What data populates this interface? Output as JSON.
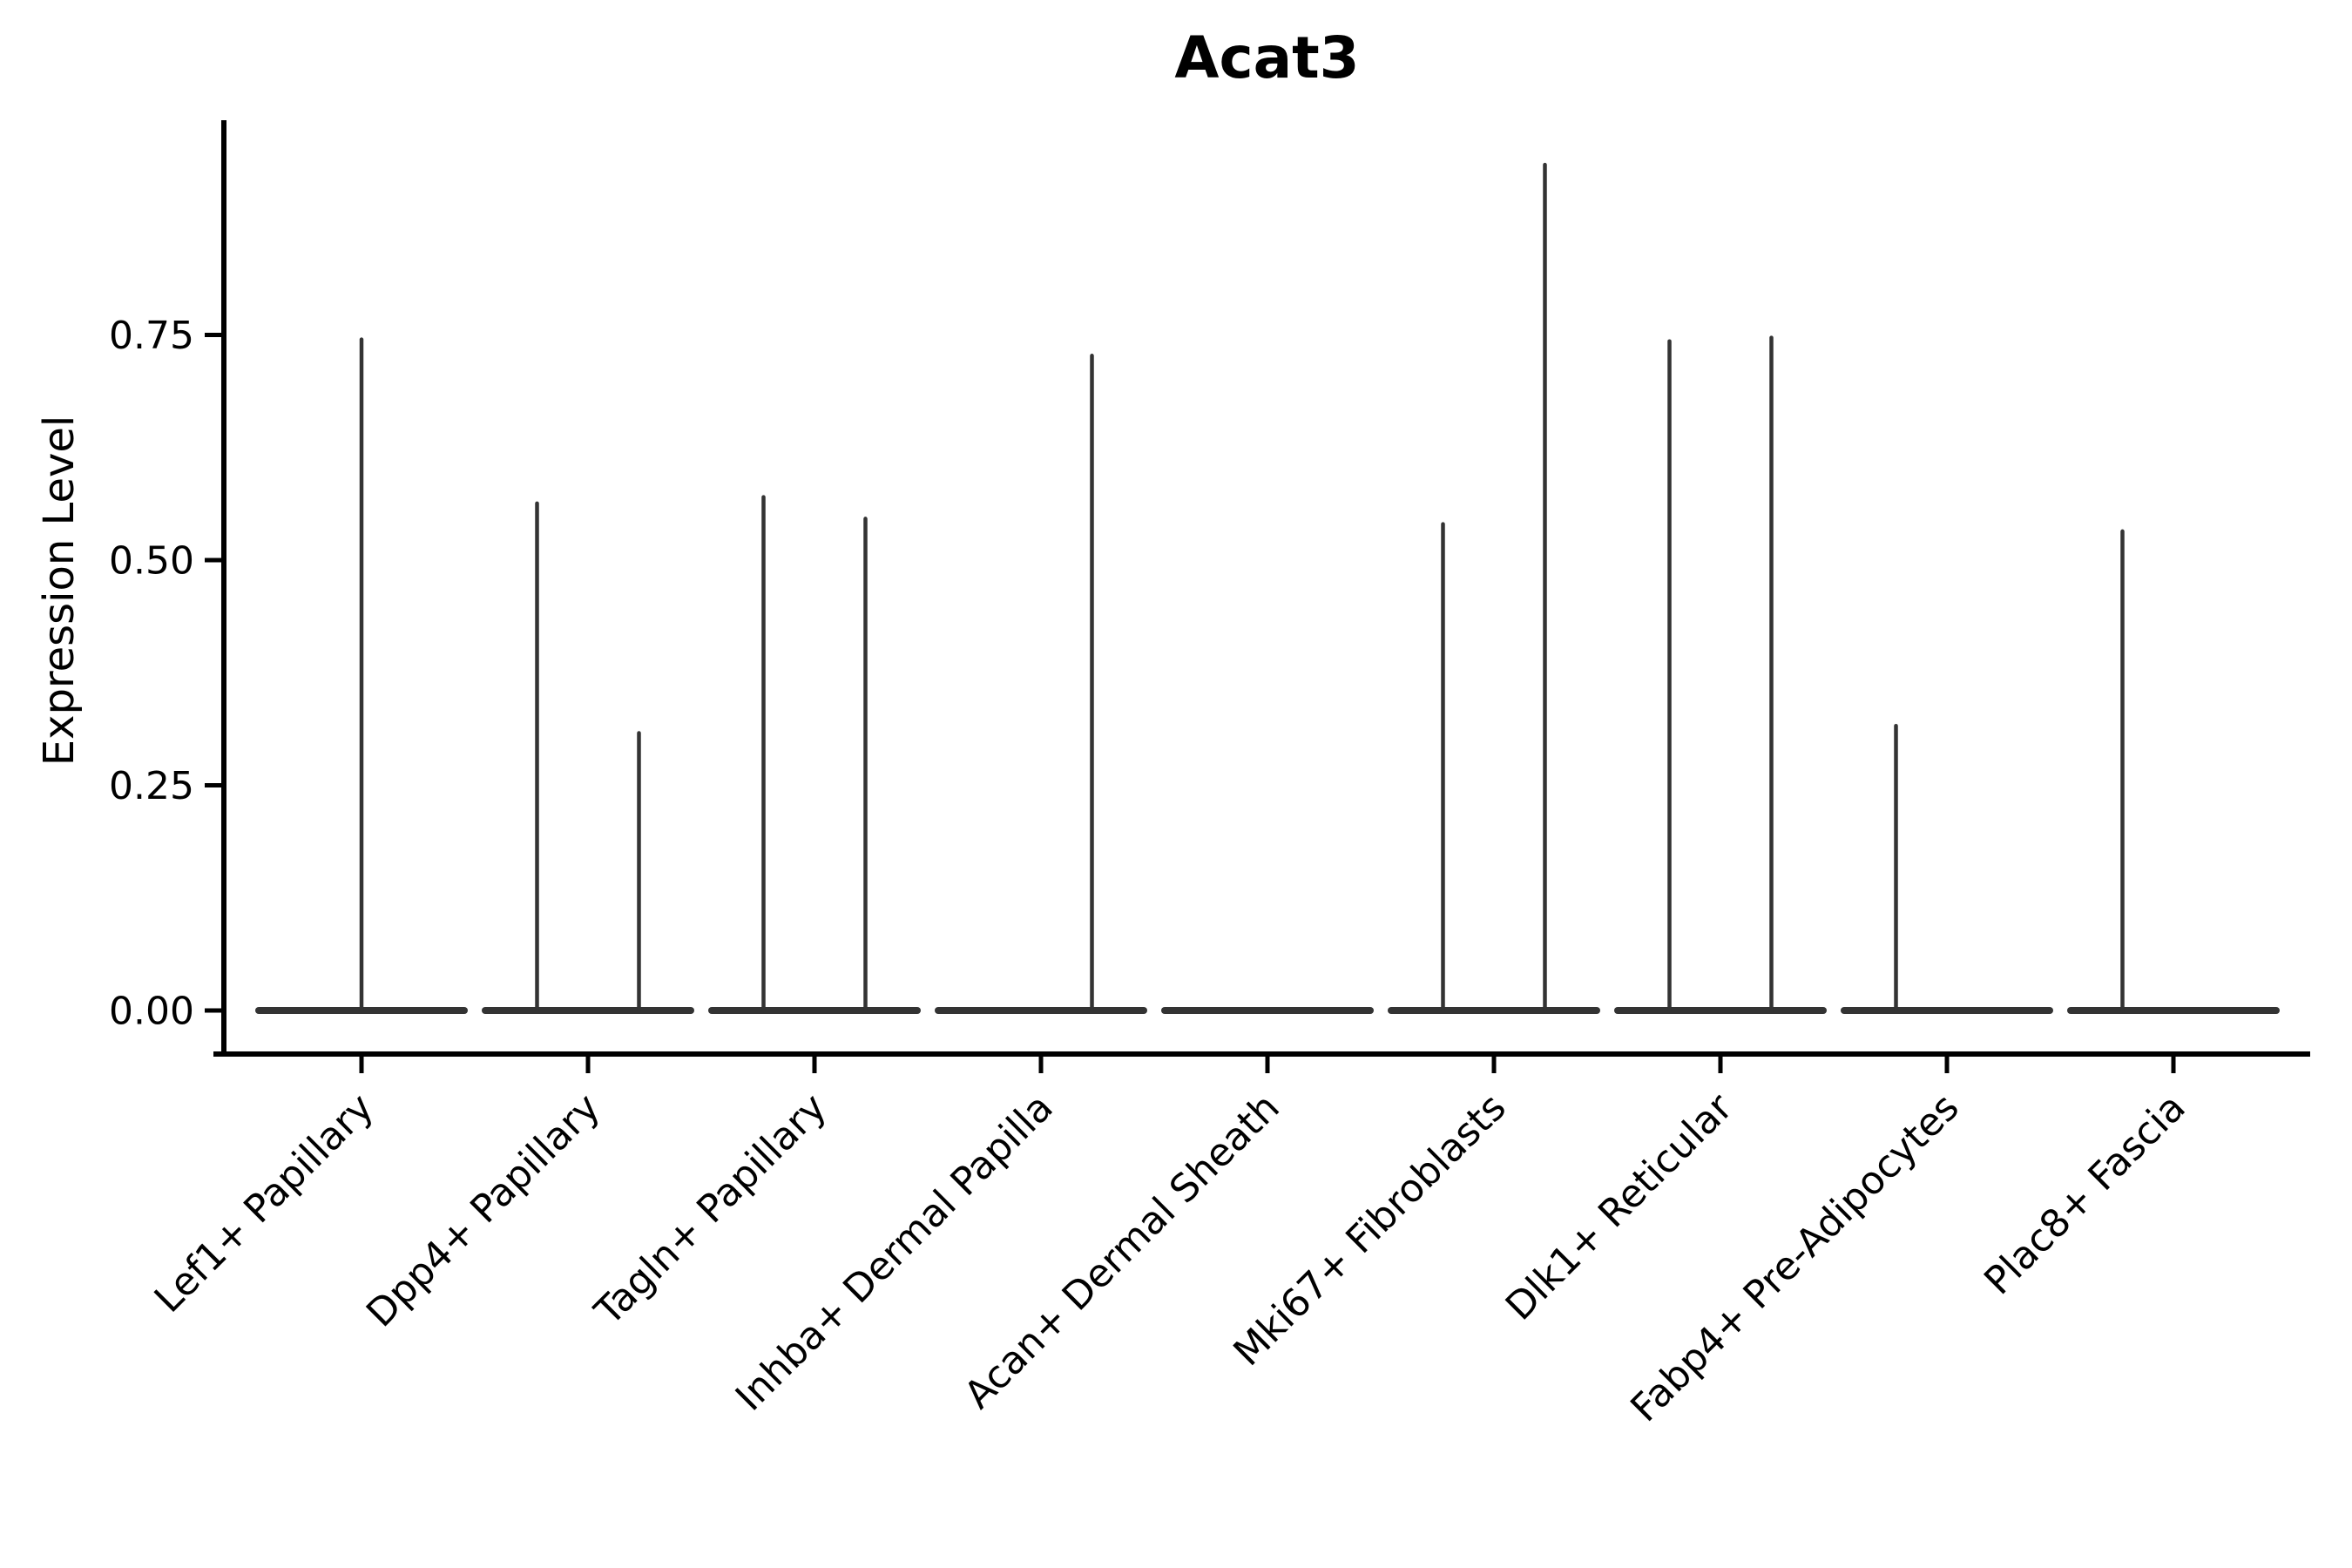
{
  "page": {
    "background_color": "#ffffff"
  },
  "chart_data": {
    "type": "violin",
    "title": "Acat3",
    "ylabel": "Expression Level",
    "xlabel": "",
    "grid": false,
    "legend": "none",
    "axis_color": "#000000",
    "violin_color": "#333333",
    "ytick_labels": [
      "0.00",
      "0.25",
      "0.50",
      "0.75"
    ],
    "ytick_values": [
      0.0,
      0.25,
      0.5,
      0.75
    ],
    "ylim": [
      -0.048,
      0.988
    ],
    "categories": [
      "Lef1+ Papillary",
      "Dpp4+ Papillary",
      "Tagln+ Papillary",
      "Inhba+ Dermal Papilla",
      "Acan+ Dermal Sheath",
      "Mki67+ Fibroblasts",
      "Dlk1+ Reticular",
      "Fabp4+ Pre-Adipocytes",
      "Plac8+ Fascia"
    ],
    "violins": [
      {
        "category": "Lef1+ Papillary",
        "base": 0.0,
        "spikes": [
          {
            "position": "center",
            "max": 0.745
          }
        ]
      },
      {
        "category": "Dpp4+ Papillary",
        "base": 0.0,
        "spikes": [
          {
            "position": "left",
            "max": 0.563
          },
          {
            "position": "right",
            "max": 0.308
          }
        ]
      },
      {
        "category": "Tagln+ Papillary",
        "base": 0.0,
        "spikes": [
          {
            "position": "left",
            "max": 0.57
          },
          {
            "position": "right",
            "max": 0.546
          }
        ]
      },
      {
        "category": "Inhba+ Dermal Papilla",
        "base": 0.0,
        "spikes": [
          {
            "position": "right",
            "max": 0.727
          }
        ]
      },
      {
        "category": "Acan+ Dermal Sheath",
        "base": 0.0,
        "spikes": []
      },
      {
        "category": "Mki67+ Fibroblasts",
        "base": 0.0,
        "spikes": [
          {
            "position": "left",
            "max": 0.54
          },
          {
            "position": "right",
            "max": 0.939
          }
        ]
      },
      {
        "category": "Dlk1+ Reticular",
        "base": 0.0,
        "spikes": [
          {
            "position": "left",
            "max": 0.743
          },
          {
            "position": "right",
            "max": 0.747
          }
        ]
      },
      {
        "category": "Fabp4+ Pre-Adipocytes",
        "base": 0.0,
        "spikes": [
          {
            "position": "left",
            "max": 0.316
          }
        ]
      },
      {
        "category": "Plac8+ Fascia",
        "base": 0.0,
        "spikes": [
          {
            "position": "left",
            "max": 0.532
          }
        ]
      }
    ]
  }
}
